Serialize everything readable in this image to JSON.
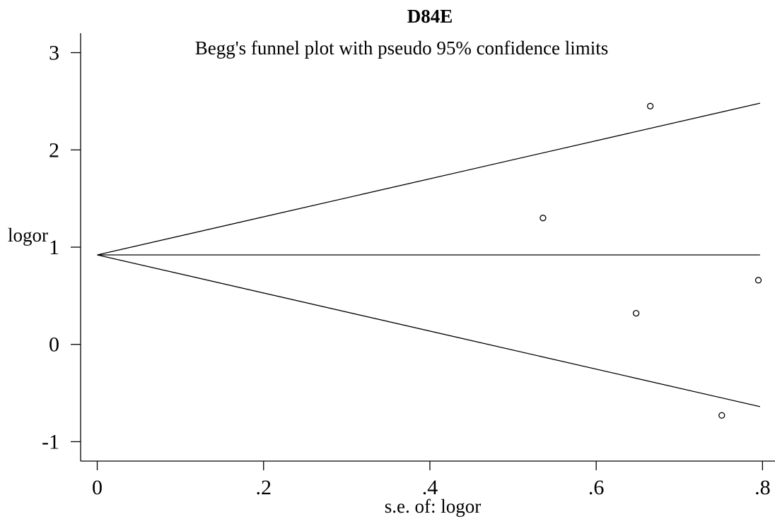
{
  "chart_data": {
    "type": "scatter",
    "title": "D84E",
    "subtitle": "Begg's funnel plot with pseudo 95% confidence limits",
    "xlabel": "s.e. of: logor",
    "ylabel": "logor",
    "xlim": [
      -0.02,
      0.815
    ],
    "ylim": [
      -1.2,
      3.2
    ],
    "xticks": [
      {
        "value": 0,
        "label": "0"
      },
      {
        "value": 0.2,
        "label": ".2"
      },
      {
        "value": 0.4,
        "label": ".4"
      },
      {
        "value": 0.6,
        "label": ".6"
      },
      {
        "value": 0.8,
        "label": ".8"
      }
    ],
    "yticks": [
      {
        "value": -1,
        "label": "-1"
      },
      {
        "value": 0,
        "label": "0"
      },
      {
        "value": 1,
        "label": "1"
      },
      {
        "value": 2,
        "label": "2"
      },
      {
        "value": 3,
        "label": "3"
      }
    ],
    "grid": false,
    "legend": "none",
    "pooled_estimate": 0.92,
    "se_max": 0.797,
    "funnel_lines": [
      {
        "name": "upper-limit",
        "x": [
          0,
          0.797
        ],
        "y": [
          0.92,
          2.48
        ]
      },
      {
        "name": "pooled-estimate",
        "x": [
          0,
          0.797
        ],
        "y": [
          0.92,
          0.92
        ]
      },
      {
        "name": "lower-limit",
        "x": [
          0,
          0.797
        ],
        "y": [
          0.92,
          -0.64
        ]
      }
    ],
    "points": [
      {
        "x": 0.536,
        "y": 1.3
      },
      {
        "x": 0.665,
        "y": 2.45
      },
      {
        "x": 0.648,
        "y": 0.32
      },
      {
        "x": 0.795,
        "y": 0.66
      },
      {
        "x": 0.751,
        "y": -0.73
      }
    ]
  }
}
